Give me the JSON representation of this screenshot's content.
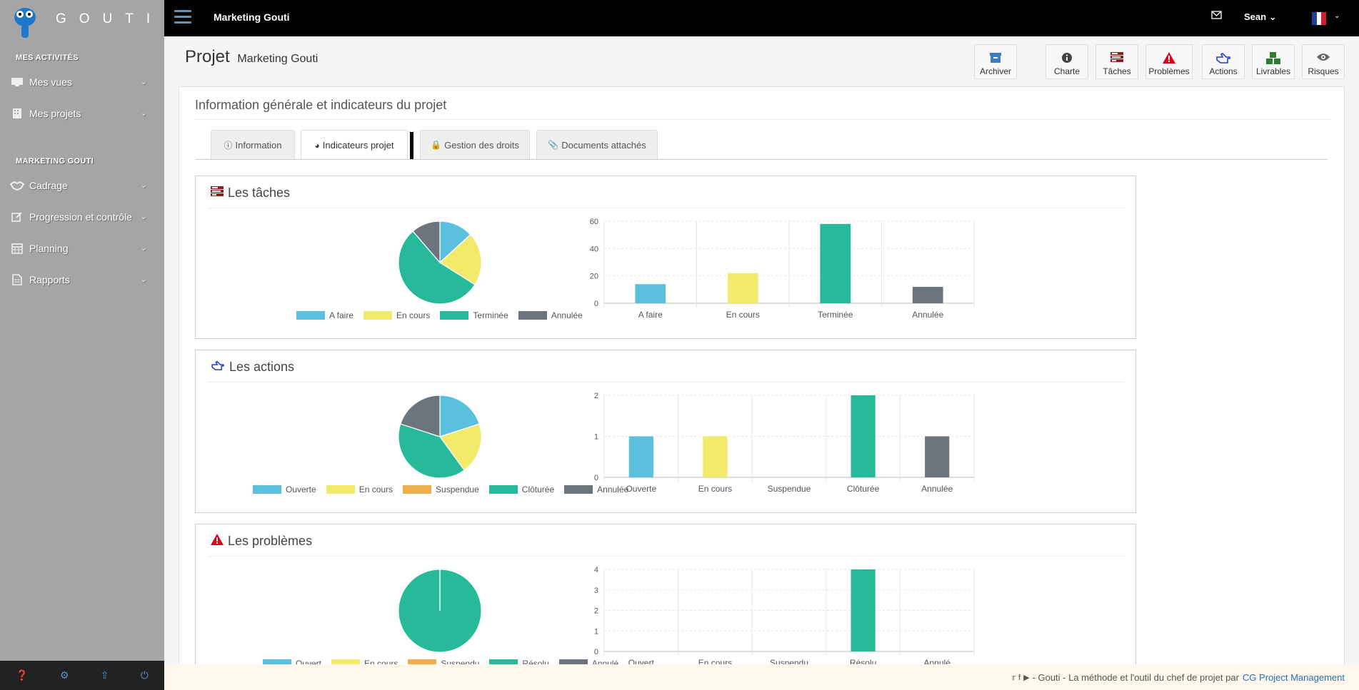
{
  "brand": {
    "name": "GOUTI"
  },
  "sidebar": {
    "sections": [
      {
        "title": "MES ACTIVITÉS"
      },
      {
        "title": "MARKETING GOUTI"
      }
    ],
    "items": [
      {
        "label": "Mes vues",
        "icon": "monitor-icon"
      },
      {
        "label": "Mes projets",
        "icon": "building-icon"
      },
      {
        "label": "Cadrage",
        "icon": "handshake-icon"
      },
      {
        "label": "Progression et contrôle",
        "icon": "edit-icon"
      },
      {
        "label": "Planning",
        "icon": "calendar-icon"
      },
      {
        "label": "Rapports",
        "icon": "file-icon"
      }
    ],
    "footer_icons": [
      "help-icon",
      "gear-icon",
      "arrow-up-icon",
      "power-icon"
    ]
  },
  "topbar": {
    "title": "Marketing Gouti",
    "user": "Sean"
  },
  "header": {
    "project_label": "Projet",
    "project_name": "Marketing Gouti",
    "buttons": [
      {
        "label": "Archiver",
        "icon": "archive-icon"
      },
      {
        "label": "Charte",
        "icon": "info-icon"
      },
      {
        "label": "Tâches",
        "icon": "tasks-icon"
      },
      {
        "label": "Problèmes",
        "icon": "warning-icon"
      },
      {
        "label": "Actions",
        "icon": "hand-pointer-icon"
      },
      {
        "label": "Livrables",
        "icon": "cubes-icon"
      },
      {
        "label": "Risques",
        "icon": "eye-icon"
      }
    ]
  },
  "panel": {
    "title": "Information générale et indicateurs du projet",
    "tabs": [
      {
        "label": "Information",
        "icon": "info-circle-icon"
      },
      {
        "label": "Indicateurs projet",
        "icon": "pie-chart-icon"
      },
      {
        "label": "Gestion des droits",
        "icon": "lock-icon"
      },
      {
        "label": "Documents attachés",
        "icon": "paperclip-icon"
      }
    ],
    "active_tab": "Indicateurs projet"
  },
  "colors": {
    "blue": "#5bc0de",
    "yellow": "#f2ea6a",
    "orange": "#f0ad4e",
    "green": "#26b99a",
    "gray": "#6c757d"
  },
  "cards": [
    {
      "title": "Les tâches",
      "icon": "tasks-icon"
    },
    {
      "title": "Les actions",
      "icon": "hand-pointer-icon"
    },
    {
      "title": "Les problèmes",
      "icon": "warning-icon"
    }
  ],
  "chart_data": [
    {
      "type": "pie",
      "card": "Les tâches",
      "categories": [
        "A faire",
        "En cours",
        "Terminée",
        "Annulée"
      ],
      "values": [
        14,
        22,
        58,
        12
      ],
      "colors": [
        "#5bc0de",
        "#f2ea6a",
        "#26b99a",
        "#6c757d"
      ]
    },
    {
      "type": "bar",
      "card": "Les tâches",
      "categories": [
        "A faire",
        "En cours",
        "Terminée",
        "Annulée"
      ],
      "values": [
        14,
        22,
        58,
        12
      ],
      "colors": [
        "#5bc0de",
        "#f2ea6a",
        "#26b99a",
        "#6c757d"
      ],
      "ylim": [
        0,
        60
      ],
      "yticks": [
        0,
        20,
        40,
        60
      ]
    },
    {
      "type": "pie",
      "card": "Les actions",
      "categories": [
        "Ouverte",
        "En cours",
        "Suspendue",
        "Clôturée",
        "Annulée"
      ],
      "values": [
        1,
        1,
        0,
        2,
        1
      ],
      "colors": [
        "#5bc0de",
        "#f2ea6a",
        "#f0ad4e",
        "#26b99a",
        "#6c757d"
      ]
    },
    {
      "type": "bar",
      "card": "Les actions",
      "categories": [
        "Ouverte",
        "En cours",
        "Suspendue",
        "Clôturée",
        "Annulée"
      ],
      "values": [
        1,
        1,
        0,
        2,
        1
      ],
      "colors": [
        "#5bc0de",
        "#f2ea6a",
        "#f0ad4e",
        "#26b99a",
        "#6c757d"
      ],
      "ylim": [
        0,
        2
      ],
      "yticks": [
        0,
        1,
        2
      ]
    },
    {
      "type": "pie",
      "card": "Les problèmes",
      "categories": [
        "Ouvert",
        "En cours",
        "Suspendu",
        "Résolu",
        "Annulé"
      ],
      "values": [
        0,
        0,
        0,
        4,
        0
      ],
      "colors": [
        "#5bc0de",
        "#f2ea6a",
        "#f0ad4e",
        "#26b99a",
        "#6c757d"
      ]
    },
    {
      "type": "bar",
      "card": "Les problèmes",
      "categories": [
        "Ouvert",
        "En cours",
        "Suspendu",
        "Résolu",
        "Annulé"
      ],
      "values": [
        0,
        0,
        0,
        4,
        0
      ],
      "colors": [
        "#5bc0de",
        "#f2ea6a",
        "#f0ad4e",
        "#26b99a",
        "#6c757d"
      ],
      "ylim": [
        0,
        4
      ],
      "yticks": [
        0,
        1,
        2,
        3,
        4
      ]
    }
  ],
  "footer": {
    "text": "- Gouti - La méthode et l'outil du chef de projet par",
    "link": "CG Project Management"
  }
}
